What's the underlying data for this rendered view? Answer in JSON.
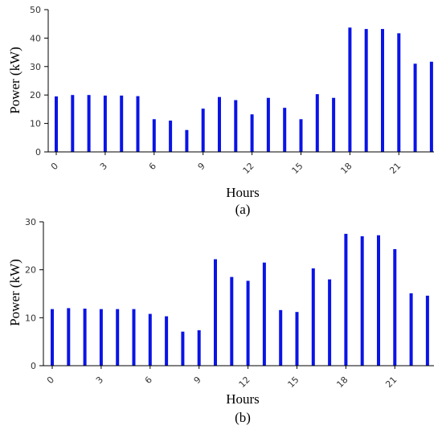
{
  "colors": {
    "bar": "#0a14e6",
    "axis": "#000000"
  },
  "chart_data": [
    {
      "type": "bar",
      "panel_label": "(a)",
      "xlabel": "Hours",
      "ylabel": "Power (kW)",
      "x": [
        0,
        1,
        2,
        3,
        4,
        5,
        6,
        7,
        8,
        9,
        10,
        11,
        12,
        13,
        14,
        15,
        16,
        17,
        18,
        19,
        20,
        21,
        22,
        23
      ],
      "values": [
        19.5,
        20,
        20,
        19.8,
        19.8,
        19.6,
        11.5,
        11,
        7.7,
        15.2,
        19.3,
        18.2,
        13.2,
        19,
        15.5,
        11.5,
        20.3,
        19,
        43.7,
        43.2,
        43.2,
        41.7,
        31,
        31.7
      ],
      "xticks": [
        "0",
        "3",
        "6",
        "9",
        "12",
        "15",
        "18",
        "21"
      ],
      "yticks": [
        "0",
        "10",
        "20",
        "30",
        "40",
        "50"
      ],
      "ylim": [
        0,
        50
      ],
      "grid": false
    },
    {
      "type": "bar",
      "panel_label": "(b)",
      "xlabel": "Hours",
      "ylabel": "Power (kW)",
      "x": [
        0,
        1,
        2,
        3,
        4,
        5,
        6,
        7,
        8,
        9,
        10,
        11,
        12,
        13,
        14,
        15,
        16,
        17,
        18,
        19,
        20,
        21,
        22,
        23
      ],
      "values": [
        11.8,
        12,
        11.9,
        11.8,
        11.8,
        11.8,
        10.8,
        10.3,
        7.1,
        7.4,
        22.2,
        18.5,
        17.7,
        21.5,
        11.6,
        11.2,
        20.3,
        18,
        27.5,
        27,
        27.2,
        24.3,
        15.1,
        14.6
      ],
      "xticks": [
        "0",
        "3",
        "6",
        "9",
        "12",
        "15",
        "18",
        "21"
      ],
      "yticks": [
        "0",
        "10",
        "20",
        "30"
      ],
      "ylim": [
        0,
        30
      ],
      "grid": false
    }
  ]
}
